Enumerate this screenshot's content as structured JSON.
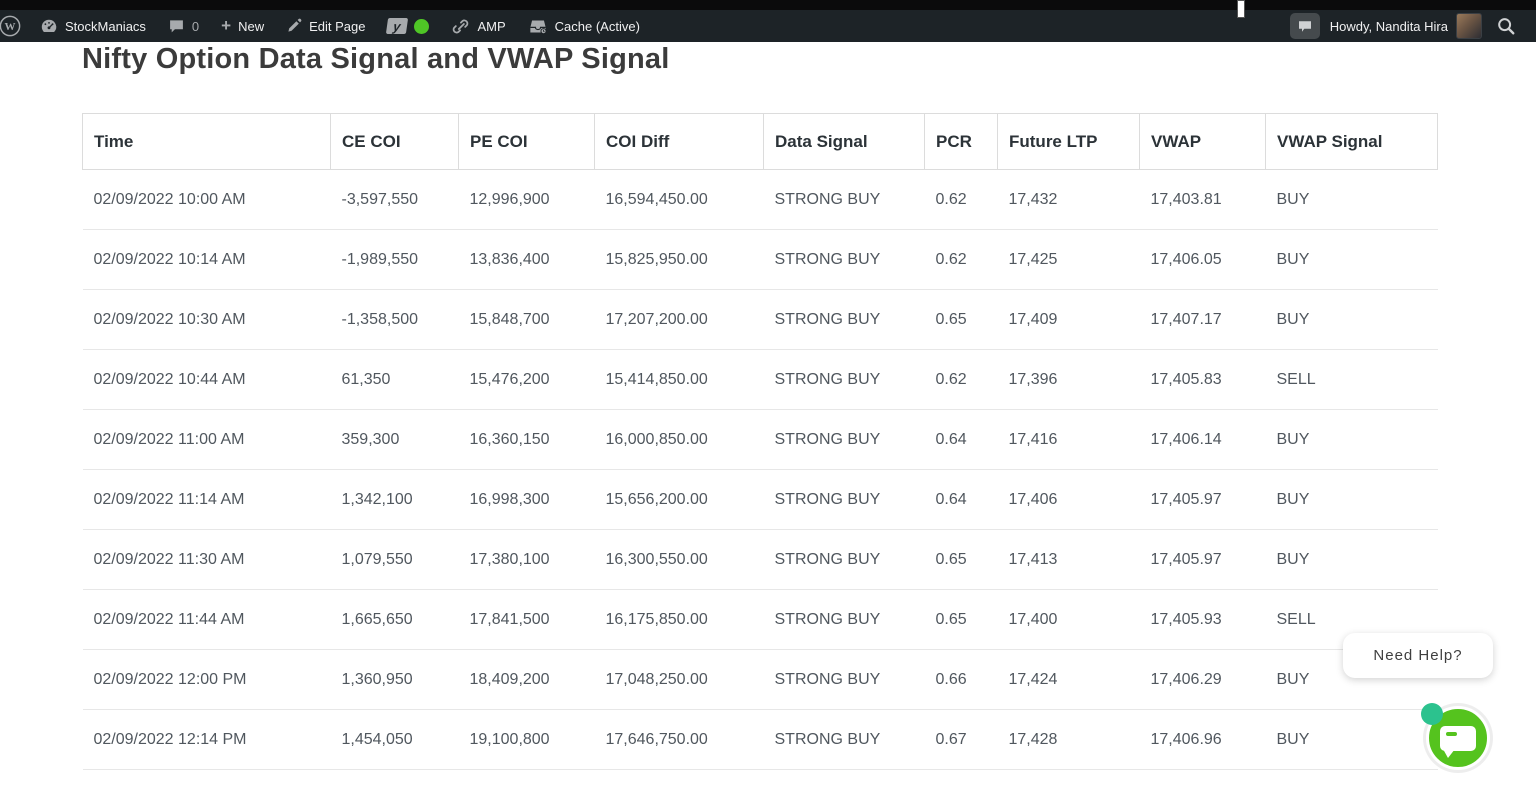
{
  "admin_bar": {
    "site_name": "StockManiacs",
    "comments_count": "0",
    "new_label": "New",
    "edit_label": "Edit Page",
    "amp_label": "AMP",
    "cache_label": "Cache (Active)",
    "howdy": "Howdy, Nandita Hira",
    "icons": {
      "wordpress_logo": "wordpress-logo-icon",
      "dashboard": "gauge-icon",
      "comments": "comment-bubble-icon",
      "new": "plus-icon",
      "edit": "pencil-icon",
      "seo": "yoast-icon",
      "seo_status": "green-dot-icon",
      "amp": "link-icon",
      "cache": "cache-box-icon",
      "chat": "chat-bubble-icon",
      "search": "search-icon"
    }
  },
  "page": {
    "title": "Nifty Option Data Signal and VWAP Signal"
  },
  "table": {
    "columns": [
      "Time",
      "CE COI",
      "PE COI",
      "COI Diff",
      "Data Signal",
      "PCR",
      "Future LTP",
      "VWAP",
      "VWAP Signal"
    ],
    "rows": [
      [
        "02/09/2022 10:00 AM",
        "-3,597,550",
        "12,996,900",
        "16,594,450.00",
        "STRONG BUY",
        "0.62",
        "17,432",
        "17,403.81",
        "BUY"
      ],
      [
        "02/09/2022 10:14 AM",
        "-1,989,550",
        "13,836,400",
        "15,825,950.00",
        "STRONG BUY",
        "0.62",
        "17,425",
        "17,406.05",
        "BUY"
      ],
      [
        "02/09/2022 10:30 AM",
        "-1,358,500",
        "15,848,700",
        "17,207,200.00",
        "STRONG BUY",
        "0.65",
        "17,409",
        "17,407.17",
        "BUY"
      ],
      [
        "02/09/2022 10:44 AM",
        "61,350",
        "15,476,200",
        "15,414,850.00",
        "STRONG BUY",
        "0.62",
        "17,396",
        "17,405.83",
        "SELL"
      ],
      [
        "02/09/2022 11:00 AM",
        "359,300",
        "16,360,150",
        "16,000,850.00",
        "STRONG BUY",
        "0.64",
        "17,416",
        "17,406.14",
        "BUY"
      ],
      [
        "02/09/2022 11:14 AM",
        "1,342,100",
        "16,998,300",
        "15,656,200.00",
        "STRONG BUY",
        "0.64",
        "17,406",
        "17,405.97",
        "BUY"
      ],
      [
        "02/09/2022 11:30 AM",
        "1,079,550",
        "17,380,100",
        "16,300,550.00",
        "STRONG BUY",
        "0.65",
        "17,413",
        "17,405.97",
        "BUY"
      ],
      [
        "02/09/2022 11:44 AM",
        "1,665,650",
        "17,841,500",
        "16,175,850.00",
        "STRONG BUY",
        "0.65",
        "17,400",
        "17,405.93",
        "SELL"
      ],
      [
        "02/09/2022 12:00 PM",
        "1,360,950",
        "18,409,200",
        "17,048,250.00",
        "STRONG BUY",
        "0.66",
        "17,424",
        "17,406.29",
        "BUY"
      ],
      [
        "02/09/2022 12:14 PM",
        "1,454,050",
        "19,100,800",
        "17,646,750.00",
        "STRONG BUY",
        "0.67",
        "17,428",
        "17,406.96",
        "BUY"
      ]
    ]
  },
  "help": {
    "label": "Need Help?"
  },
  "colors": {
    "admin_bar_bg": "#1d2327",
    "admin_bar_text": "#f0f0f1",
    "admin_bar_icon": "#a7aaad",
    "seo_status_green": "#4fc626",
    "chat_widget_green": "#55c31e",
    "chat_online_dot": "#2cc28e",
    "header_text": "#2c3338",
    "body_text": "#50575e",
    "border_header": "#dcdcdc",
    "border_row": "#e7e7e7"
  }
}
